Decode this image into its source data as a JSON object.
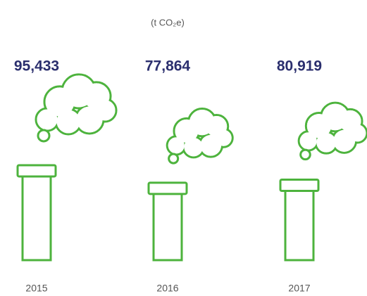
{
  "chart_data": {
    "type": "pictogram",
    "subtitle": "(t CO₂e)",
    "categories": [
      "2015",
      "2016",
      "2017"
    ],
    "values": [
      95433,
      77864,
      80919
    ],
    "value_labels": [
      "95,433",
      "77,864",
      "80,919"
    ],
    "color": "#4db33d"
  }
}
